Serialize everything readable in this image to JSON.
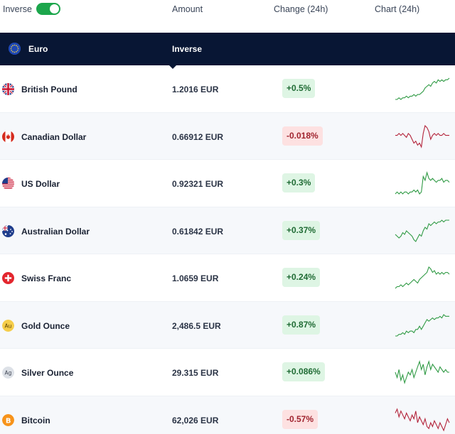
{
  "header": {
    "inverse_label": "Inverse",
    "inverse_on": true,
    "amount_label": "Amount",
    "change_label": "Change (24h)",
    "chart_label": "Chart (24h)"
  },
  "base": {
    "name": "Euro",
    "mode": "Inverse"
  },
  "colors": {
    "up_text": "#1f6b34",
    "up_bg": "#def5e4",
    "down_text": "#a0242f",
    "down_bg": "#fde1e1",
    "base_bar": "#081634",
    "toggle": "#1ca64c"
  },
  "rows": [
    {
      "name": "British Pound",
      "icon": "uk-flag-icon",
      "amount": "1.2016 EUR",
      "change": "+0.5%",
      "direction": "up",
      "spark": [
        2,
        2,
        3,
        2,
        3,
        3,
        4,
        3,
        4,
        4,
        5,
        4,
        5,
        5,
        6,
        7,
        9,
        10,
        11,
        10,
        12,
        13,
        12,
        14,
        13,
        14,
        13,
        14,
        14,
        15
      ]
    },
    {
      "name": "Canadian Dollar",
      "icon": "canada-flag-icon",
      "amount": "0.66912 EUR",
      "change": "-0.018%",
      "direction": "down",
      "spark": [
        8,
        8,
        9,
        8,
        9,
        8,
        7,
        9,
        8,
        6,
        4,
        5,
        3,
        4,
        2,
        9,
        13,
        12,
        10,
        6,
        8,
        9,
        8,
        9,
        8,
        8,
        9,
        8,
        8,
        8
      ]
    },
    {
      "name": "US Dollar",
      "icon": "us-flag-icon",
      "amount": "0.92321 EUR",
      "change": "+0.3%",
      "direction": "up",
      "spark": [
        3,
        4,
        3,
        4,
        3,
        4,
        4,
        3,
        4,
        4,
        5,
        4,
        5,
        3,
        4,
        12,
        10,
        14,
        11,
        10,
        11,
        10,
        9,
        10,
        10,
        11,
        9,
        10,
        10,
        9
      ]
    },
    {
      "name": "Australian Dollar",
      "icon": "australia-flag-icon",
      "amount": "0.61842 EUR",
      "change": "+0.37%",
      "direction": "up",
      "spark": [
        6,
        5,
        4,
        5,
        7,
        6,
        8,
        7,
        6,
        5,
        3,
        2,
        4,
        6,
        5,
        8,
        10,
        9,
        12,
        11,
        12,
        13,
        12,
        13,
        13,
        14,
        13,
        14,
        14,
        14
      ]
    },
    {
      "name": "Swiss Franc",
      "icon": "switzerland-flag-icon",
      "amount": "1.0659 EUR",
      "change": "+0.24%",
      "direction": "up",
      "spark": [
        2,
        3,
        3,
        4,
        3,
        4,
        5,
        4,
        5,
        6,
        7,
        6,
        5,
        7,
        8,
        9,
        10,
        11,
        14,
        13,
        11,
        12,
        10,
        11,
        10,
        11,
        10,
        11,
        11,
        10
      ]
    },
    {
      "name": "Gold Ounce",
      "icon": "gold-coin-icon",
      "amount": "2,486.5 EUR",
      "change": "+0.87%",
      "direction": "up",
      "spark": [
        2,
        2,
        3,
        3,
        4,
        3,
        5,
        4,
        5,
        5,
        4,
        6,
        6,
        8,
        6,
        8,
        10,
        12,
        11,
        12,
        13,
        12,
        13,
        13,
        14,
        13,
        15,
        14,
        14,
        14
      ]
    },
    {
      "name": "Silver Ounce",
      "icon": "silver-coin-icon",
      "amount": "29.315 EUR",
      "change": "+0.086%",
      "direction": "up",
      "spark": [
        8,
        6,
        9,
        5,
        7,
        4,
        6,
        8,
        7,
        9,
        6,
        8,
        10,
        12,
        9,
        11,
        7,
        10,
        12,
        9,
        11,
        10,
        9,
        8,
        10,
        9,
        8,
        9,
        8,
        8
      ]
    },
    {
      "name": "Bitcoin",
      "icon": "bitcoin-icon",
      "amount": "62,026 EUR",
      "change": "-0.57%",
      "direction": "down",
      "spark": [
        12,
        14,
        10,
        13,
        11,
        9,
        12,
        10,
        8,
        11,
        9,
        13,
        7,
        10,
        8,
        6,
        9,
        5,
        4,
        7,
        5,
        8,
        6,
        4,
        7,
        5,
        3,
        6,
        9,
        7
      ]
    }
  ]
}
